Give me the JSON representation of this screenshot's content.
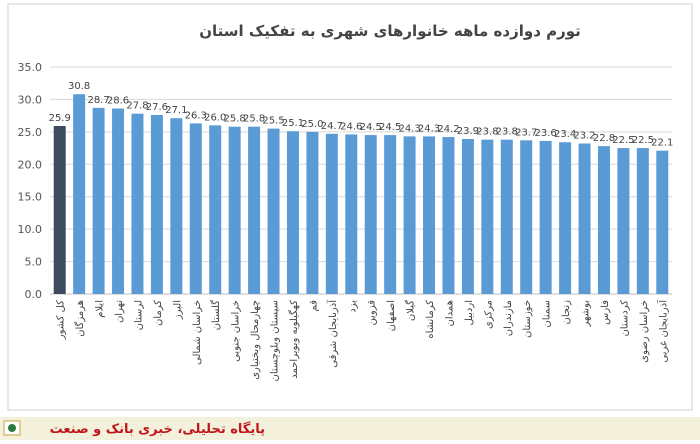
{
  "chart_data": {
    "type": "bar",
    "title": "تورم دوازده ماهه خانوارهای شهری به تفکیک استان",
    "categories": [
      "کل کشور",
      "هرمزگان",
      "ایلام",
      "تهران",
      "لرستان",
      "کرمان",
      "البرز",
      "خراسان شمالی",
      "گلستان",
      "خراسان جنوبی",
      "چهارمحال وبختیاری",
      "سیستان وبلوچستان",
      "کهگیلویه وبویراحمد",
      "قم",
      "آذربایجان شرقی",
      "یزد",
      "قزوین",
      "اصفهان",
      "گیلان",
      "کرمانشاه",
      "همدان",
      "اردبیل",
      "مرکزی",
      "مازندران",
      "خوزستان",
      "سمنان",
      "زنجان",
      "بوشهر",
      "فارس",
      "کردستان",
      "خراسان رضوی",
      "آذربایجان غربی"
    ],
    "values": [
      25.9,
      30.8,
      28.7,
      28.6,
      27.8,
      27.6,
      27.1,
      26.3,
      26.0,
      25.8,
      25.8,
      25.5,
      25.1,
      25.0,
      24.7,
      24.6,
      24.5,
      24.5,
      24.3,
      24.3,
      24.2,
      23.9,
      23.8,
      23.8,
      23.7,
      23.6,
      23.4,
      23.2,
      22.8,
      22.5,
      22.5,
      22.1
    ],
    "value_labels": [
      "25.9",
      "30.8",
      "28.7",
      "28.6",
      "27.8",
      "27.6",
      "27.1",
      "26.3",
      "26.0",
      "25.8",
      "25.8",
      "25.5",
      "25.1",
      "25.0",
      "24.7",
      "24.6",
      "24.5",
      "24.5",
      "24.3",
      "24.3",
      "24.2",
      "23.9",
      "23.8",
      "23.8",
      "23.7",
      "23.6",
      "23.4",
      "23.2",
      "22.8",
      "22.5",
      "22.5",
      "22.1"
    ],
    "colors": [
      "#3d4b5c",
      "#5b9bd5",
      "#5b9bd5",
      "#5b9bd5",
      "#5b9bd5",
      "#5b9bd5",
      "#5b9bd5",
      "#5b9bd5",
      "#5b9bd5",
      "#5b9bd5",
      "#5b9bd5",
      "#5b9bd5",
      "#5b9bd5",
      "#5b9bd5",
      "#5b9bd5",
      "#5b9bd5",
      "#5b9bd5",
      "#5b9bd5",
      "#5b9bd5",
      "#5b9bd5",
      "#5b9bd5",
      "#5b9bd5",
      "#5b9bd5",
      "#5b9bd5",
      "#5b9bd5",
      "#5b9bd5",
      "#5b9bd5",
      "#5b9bd5",
      "#5b9bd5",
      "#5b9bd5",
      "#5b9bd5",
      "#5b9bd5"
    ],
    "ylim": [
      0,
      35
    ],
    "yticks": [
      {
        "value": 0,
        "label": "0.0"
      },
      {
        "value": 5,
        "label": "5.0"
      },
      {
        "value": 10,
        "label": "10.0"
      },
      {
        "value": 15,
        "label": "15.0"
      },
      {
        "value": 20,
        "label": "20.0"
      },
      {
        "value": 25,
        "label": "25.0"
      },
      {
        "value": 30,
        "label": "30.0"
      },
      {
        "value": 35,
        "label": "35.0"
      }
    ],
    "grid": true
  },
  "footer": {
    "text": "پایگاه تحلیلی، خبری بانک و صنعت"
  }
}
